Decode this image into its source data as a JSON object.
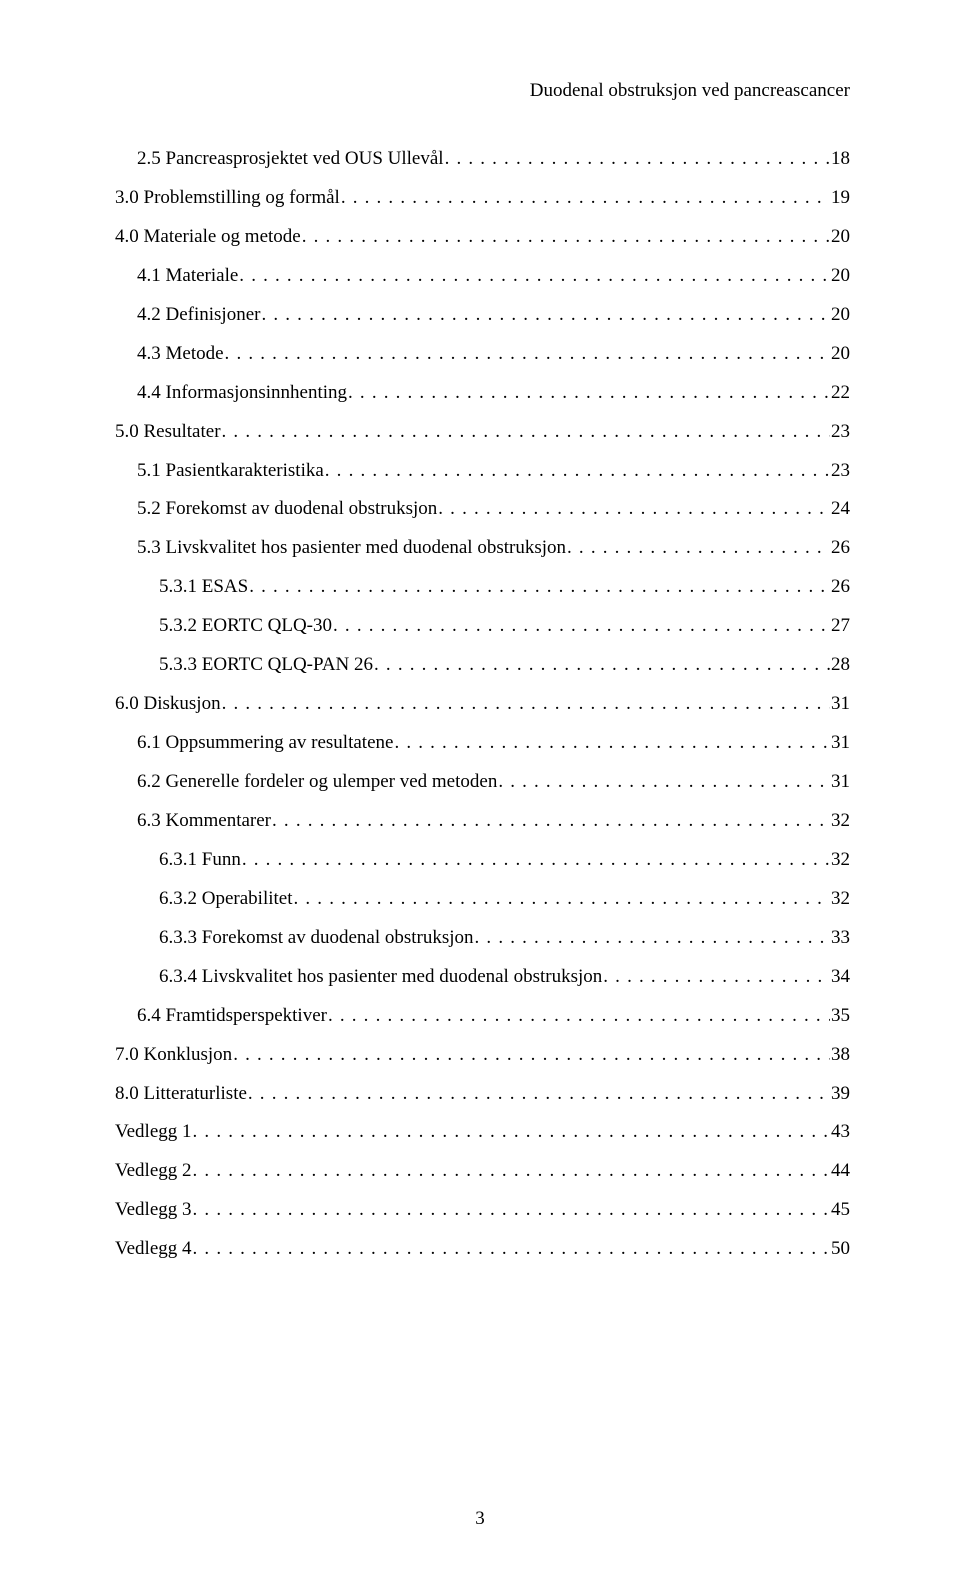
{
  "header": {
    "running_title": "Duodenal obstruksjon ved pancreascancer"
  },
  "toc": {
    "entries": [
      {
        "level": 2,
        "label": "2.5 Pancreasprosjektet ved OUS Ullevål",
        "page": "18"
      },
      {
        "level": 1,
        "label": "3.0 Problemstilling og formål",
        "page": "19"
      },
      {
        "level": 1,
        "label": "4.0 Materiale og metode",
        "page": "20"
      },
      {
        "level": 2,
        "label": "4.1 Materiale",
        "page": "20"
      },
      {
        "level": 2,
        "label": "4.2 Definisjoner",
        "page": "20"
      },
      {
        "level": 2,
        "label": "4.3 Metode",
        "page": "20"
      },
      {
        "level": 2,
        "label": "4.4 Informasjonsinnhenting",
        "page": "22"
      },
      {
        "level": 1,
        "label": "5.0 Resultater",
        "page": "23"
      },
      {
        "level": 2,
        "label": "5.1 Pasientkarakteristika",
        "page": "23"
      },
      {
        "level": 2,
        "label": "5.2 Forekomst av duodenal obstruksjon",
        "page": "24"
      },
      {
        "level": 2,
        "label": "5.3 Livskvalitet hos pasienter med duodenal obstruksjon",
        "page": "26"
      },
      {
        "level": 3,
        "label": "5.3.1 ESAS",
        "page": "26"
      },
      {
        "level": 3,
        "label": "5.3.2 EORTC QLQ-30",
        "page": "27"
      },
      {
        "level": 3,
        "label": "5.3.3 EORTC QLQ-PAN 26",
        "page": "28"
      },
      {
        "level": 1,
        "label": "6.0 Diskusjon",
        "page": "31"
      },
      {
        "level": 2,
        "label": "6.1 Oppsummering av resultatene",
        "page": "31"
      },
      {
        "level": 2,
        "label": "6.2 Generelle fordeler og ulemper ved metoden",
        "page": "31"
      },
      {
        "level": 2,
        "label": "6.3 Kommentarer",
        "page": "32"
      },
      {
        "level": 3,
        "label": "6.3.1 Funn",
        "page": "32"
      },
      {
        "level": 3,
        "label": "6.3.2 Operabilitet",
        "page": "32"
      },
      {
        "level": 3,
        "label": "6.3.3 Forekomst av duodenal obstruksjon",
        "page": "33"
      },
      {
        "level": 3,
        "label": "6.3.4 Livskvalitet hos pasienter med duodenal obstruksjon",
        "page": "34"
      },
      {
        "level": 2,
        "label": "6.4 Framtidsperspektiver",
        "page": "35"
      },
      {
        "level": 1,
        "label": "7.0 Konklusjon",
        "page": "38"
      },
      {
        "level": 1,
        "label": "8.0 Litteraturliste",
        "page": "39"
      },
      {
        "level": 1,
        "label": "Vedlegg 1",
        "page": "43"
      },
      {
        "level": 1,
        "label": "Vedlegg 2",
        "page": "44"
      },
      {
        "level": 1,
        "label": "Vedlegg 3",
        "page": "45"
      },
      {
        "level": 1,
        "label": "Vedlegg 4",
        "page": "50"
      }
    ]
  },
  "footer": {
    "page_number": "3"
  }
}
